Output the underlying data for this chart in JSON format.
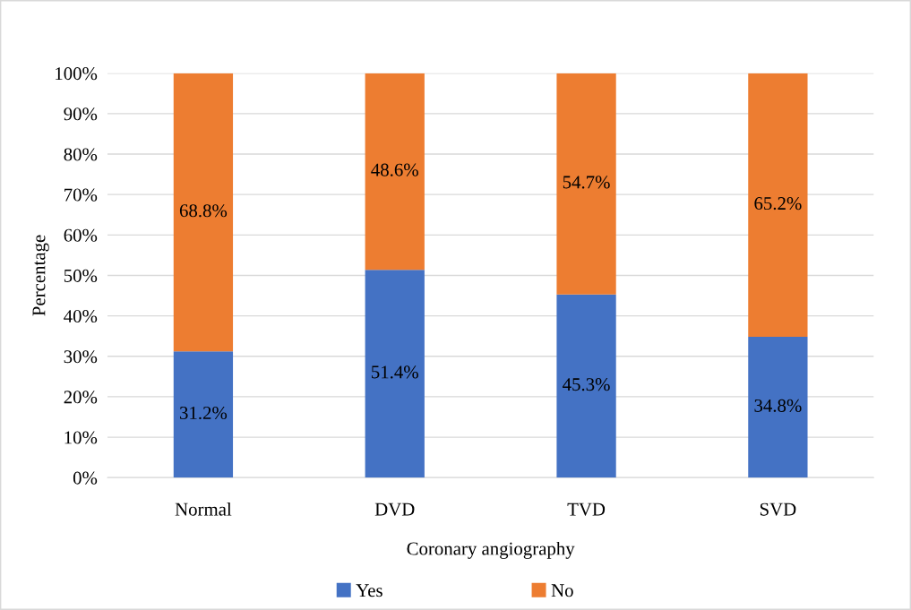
{
  "chart_data": {
    "type": "bar",
    "stacked": true,
    "xlabel": "Coronary angiography",
    "ylabel": "Percentage",
    "categories": [
      "Normal",
      "DVD",
      "TVD",
      "SVD"
    ],
    "series": [
      {
        "name": "Yes",
        "color": "#4472c4",
        "values": [
          31.2,
          51.4,
          45.3,
          34.8
        ],
        "value_labels": [
          "31.2%",
          "51.4%",
          "45.3%",
          "34.8%"
        ]
      },
      {
        "name": "No",
        "color": "#ed7d31",
        "values": [
          68.8,
          48.6,
          54.7,
          65.2
        ],
        "value_labels": [
          "68.8%",
          "48.6%",
          "54.7%",
          "65.2%"
        ]
      }
    ],
    "ylim": [
      0,
      100
    ],
    "yticks": [
      {
        "value": 0,
        "label": "0%"
      },
      {
        "value": 10,
        "label": "10%"
      },
      {
        "value": 20,
        "label": "20%"
      },
      {
        "value": 30,
        "label": "30%"
      },
      {
        "value": 40,
        "label": "40%"
      },
      {
        "value": 50,
        "label": "50%"
      },
      {
        "value": 60,
        "label": "60%"
      },
      {
        "value": 70,
        "label": "70%"
      },
      {
        "value": 80,
        "label": "80%"
      },
      {
        "value": 90,
        "label": "90%"
      },
      {
        "value": 100,
        "label": "100%"
      }
    ],
    "grid": "y",
    "legend": "bottom"
  }
}
